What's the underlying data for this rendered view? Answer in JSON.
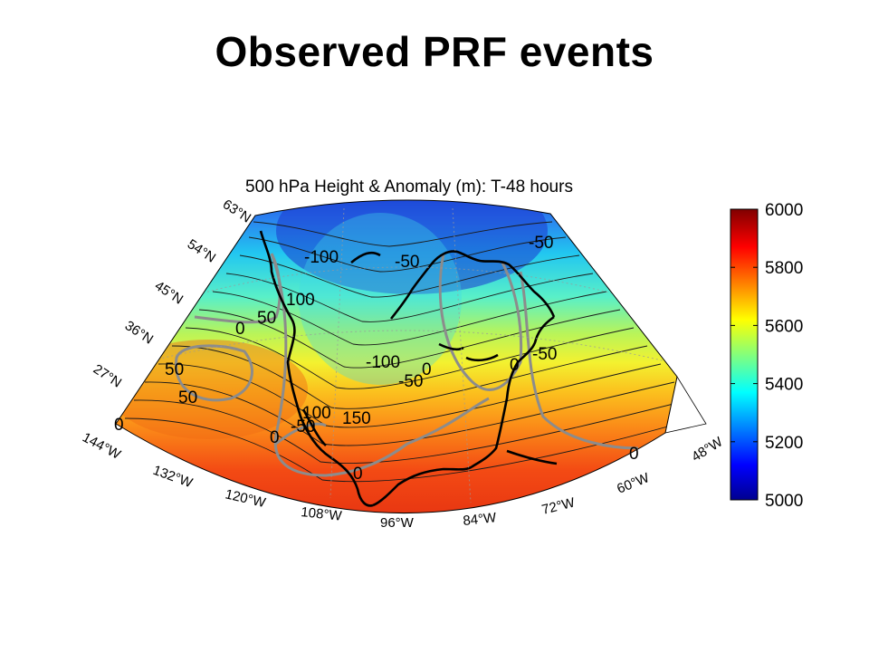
{
  "slide": {
    "title": "Observed PRF events"
  },
  "map": {
    "title": "500 hPa Height & Anomaly (m): T-48 hours",
    "lat_labels": [
      "63°N",
      "54°N",
      "45°N",
      "36°N",
      "27°N"
    ],
    "lon_labels": [
      "144°W",
      "132°W",
      "120°W",
      "108°W",
      "96°W",
      "84°W",
      "72°W",
      "60°W",
      "48°W"
    ],
    "anomaly_labels": [
      "-100",
      "-50",
      "-50",
      "100",
      "50",
      "0",
      "50",
      "50",
      "0",
      "-100",
      "-50",
      "0",
      "0",
      "-50",
      "100",
      "150",
      "-50",
      "0",
      "0",
      "0"
    ],
    "colors": {
      "anomaly_contour": "#8c8c8c",
      "height_contour": "#1a1a1a",
      "coastline": "#000000"
    }
  },
  "colorbar": {
    "ticks": [
      "6000",
      "5800",
      "5600",
      "5400",
      "5200",
      "5000"
    ],
    "min": 5000,
    "max": 6000,
    "colormap": "jet"
  }
}
